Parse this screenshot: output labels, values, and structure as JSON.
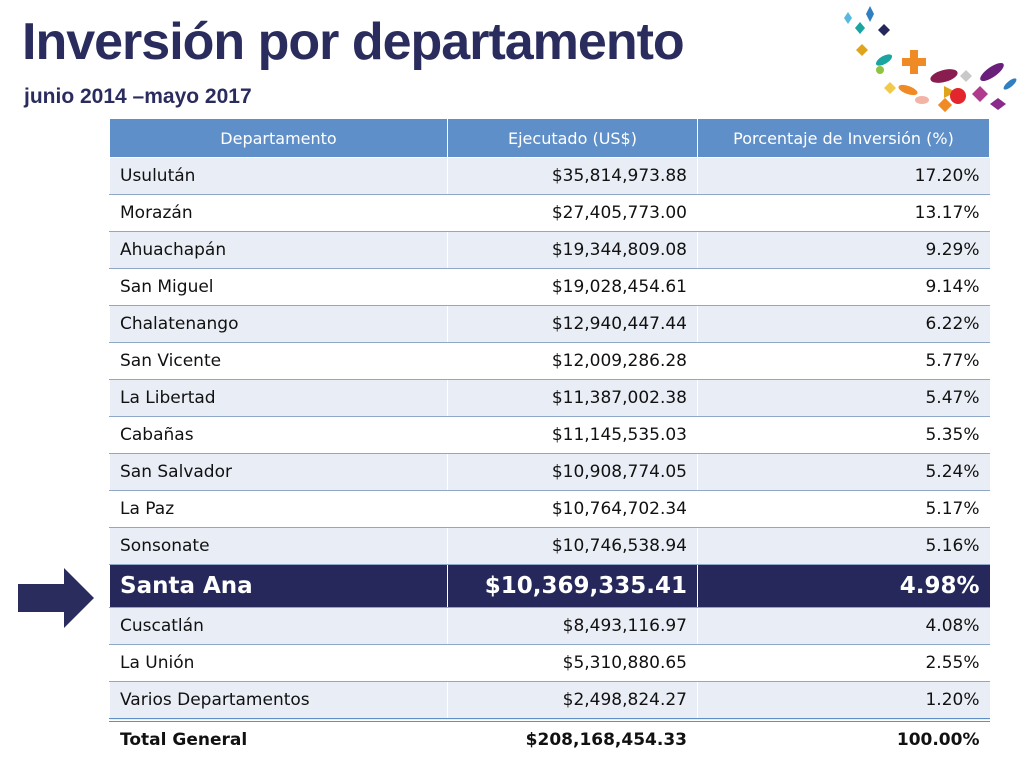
{
  "slide": {
    "title": "Inversión por departamento",
    "subtitle": "junio 2014 –mayo 2017"
  },
  "table": {
    "headers": [
      "Departamento",
      "Ejecutado (US$)",
      "Porcentaje de Inversión (%)"
    ],
    "rows": [
      {
        "dept": "Usulután",
        "amount": "$35,814,973.88",
        "pct": "17.20%"
      },
      {
        "dept": "Morazán",
        "amount": "$27,405,773.00",
        "pct": "13.17%"
      },
      {
        "dept": "Ahuachapán",
        "amount": "$19,344,809.08",
        "pct": "9.29%"
      },
      {
        "dept": "San Miguel",
        "amount": "$19,028,454.61",
        "pct": "9.14%"
      },
      {
        "dept": "Chalatenango",
        "amount": "$12,940,447.44",
        "pct": "6.22%"
      },
      {
        "dept": "San Vicente",
        "amount": "$12,009,286.28",
        "pct": "5.77%"
      },
      {
        "dept": "La Libertad",
        "amount": "$11,387,002.38",
        "pct": "5.47%"
      },
      {
        "dept": "Cabañas",
        "amount": "$11,145,535.03",
        "pct": "5.35%"
      },
      {
        "dept": "San Salvador",
        "amount": "$10,908,774.05",
        "pct": "5.24%"
      },
      {
        "dept": "La Paz",
        "amount": "$10,764,702.34",
        "pct": "5.17%"
      },
      {
        "dept": "Sonsonate",
        "amount": "$10,746,538.94",
        "pct": "5.16%"
      },
      {
        "dept": "Santa Ana",
        "amount": "$10,369,335.41",
        "pct": "4.98%",
        "highlight": true
      },
      {
        "dept": "Cuscatlán",
        "amount": "$8,493,116.97",
        "pct": "4.08%"
      },
      {
        "dept": "La Unión",
        "amount": "$5,310,880.65",
        "pct": "2.55%"
      },
      {
        "dept": "Varios Departamentos",
        "amount": "$2,498,824.27",
        "pct": "1.20%"
      }
    ],
    "total": {
      "dept": "Total General",
      "amount": "$208,168,454.33",
      "pct": "100.00%"
    }
  },
  "colors": {
    "title": "#2b2c5e",
    "header_bg": "#5f8fc8",
    "highlight_bg": "#26275a",
    "arrow": "#2b2c5e"
  },
  "icons": {
    "arrow": "right-arrow-icon",
    "decoration": "confetti-decoration-icon"
  }
}
